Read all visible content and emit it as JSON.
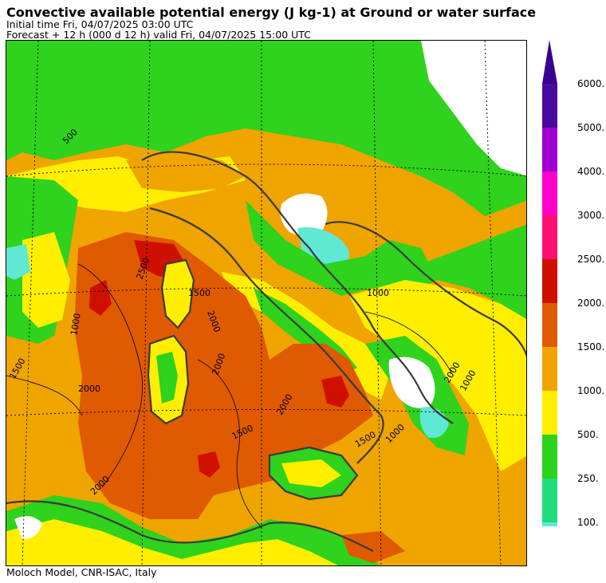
{
  "header": {
    "title": "Convective available potential energy (J kg-1) at Ground or water surface",
    "initial_time": "Initial time  Fri, 04/07/2025  03:00 UTC",
    "forecast": "Forecast  +  12 h  (000 d 12 h)  valid Fri, 04/07/2025 15:00 UTC"
  },
  "footer": {
    "credit": "Moloch Model, CNR-ISAC, Italy"
  },
  "legend": {
    "levels": [
      {
        "label": "100.",
        "color": "#5fe8d4"
      },
      {
        "label": "250.",
        "color": "#22dc7c"
      },
      {
        "label": "500.",
        "color": "#2fd21c"
      },
      {
        "label": "1000.",
        "color": "#ffee00"
      },
      {
        "label": "1500.",
        "color": "#efa400"
      },
      {
        "label": "2000.",
        "color": "#df5a00"
      },
      {
        "label": "2500.",
        "color": "#cf1000"
      },
      {
        "label": "3000.",
        "color": "#ff1070"
      },
      {
        "label": "4000.",
        "color": "#ff00cc"
      },
      {
        "label": "5000.",
        "color": "#a000cf"
      },
      {
        "label": "6000.",
        "color": "#4a0aa0"
      }
    ],
    "arrow_color": "#3a0090"
  },
  "map": {
    "contour_labels": [
      {
        "text": "1000"
      },
      {
        "text": "2500"
      },
      {
        "text": "1500"
      },
      {
        "text": "2000"
      },
      {
        "text": "2000"
      },
      {
        "text": "2000"
      },
      {
        "text": "1500"
      },
      {
        "text": "2000"
      },
      {
        "text": "1500"
      },
      {
        "text": "1000"
      },
      {
        "text": "1000"
      },
      {
        "text": "2000"
      },
      {
        "text": "1500"
      },
      {
        "text": "1000"
      },
      {
        "text": "500"
      },
      {
        "text": "2000"
      }
    ]
  }
}
